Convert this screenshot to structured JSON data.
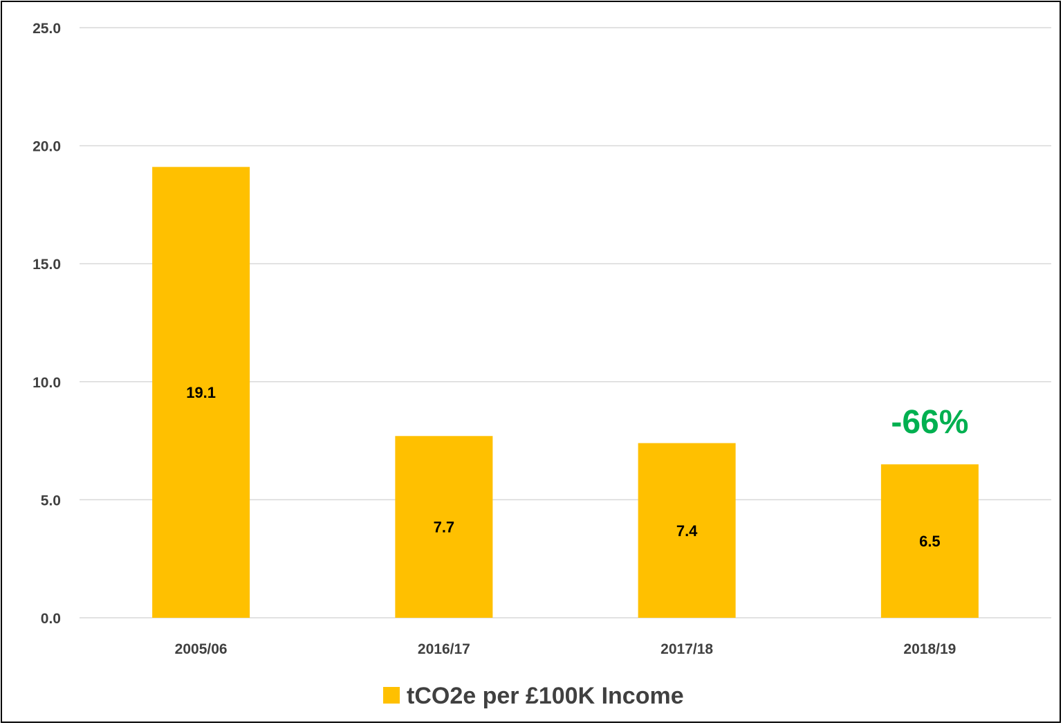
{
  "chart_data": {
    "type": "bar",
    "categories": [
      "2005/06",
      "2016/17",
      "2017/18",
      "2018/19"
    ],
    "series": [
      {
        "name": "tCO2e per £100K Income",
        "values": [
          19.1,
          7.7,
          7.4,
          6.5
        ]
      }
    ],
    "data_labels": [
      "19.1",
      "7.7",
      "7.4",
      "6.5"
    ],
    "y_ticks": [
      "0.0",
      "5.0",
      "10.0",
      "15.0",
      "20.0",
      "25.0"
    ],
    "ylim": [
      0,
      25
    ],
    "grid": true,
    "legend_position": "bottom",
    "annotation": {
      "text": "-66%",
      "category": "2018/19",
      "color": "#00B050"
    },
    "bar_color": "#FFC000",
    "gridline_color": "#D9D9D9"
  }
}
